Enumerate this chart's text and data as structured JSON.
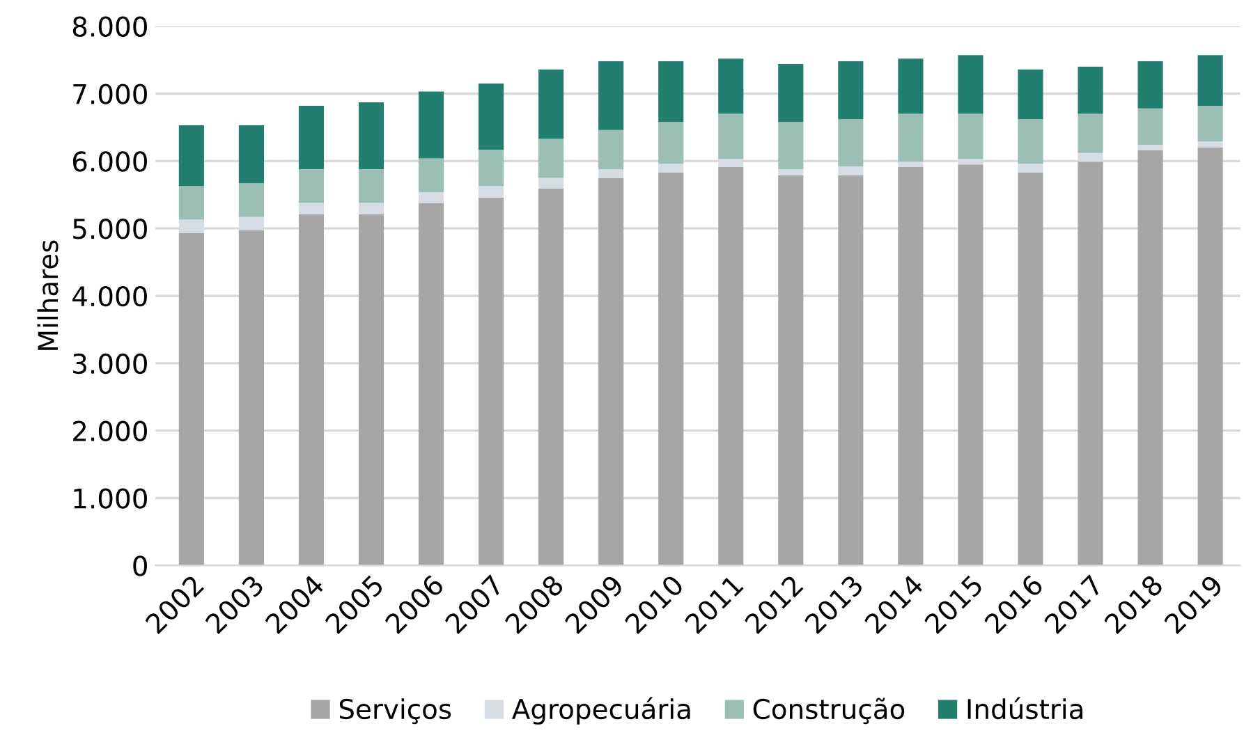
{
  "chart_data": {
    "type": "bar",
    "stacked": true,
    "ylabel": "Milhares",
    "categories": [
      "2002",
      "2003",
      "2004",
      "2005",
      "2006",
      "2007",
      "2008",
      "2009",
      "2010",
      "2011",
      "2012",
      "2013",
      "2014",
      "2015",
      "2016",
      "2017",
      "2018",
      "2019"
    ],
    "series": [
      {
        "name": "Serviços",
        "color": "#a6a6a6",
        "values": [
          4930,
          4970,
          5210,
          5210,
          5380,
          5460,
          5590,
          5750,
          5830,
          5910,
          5790,
          5790,
          5910,
          5950,
          5830,
          5990,
          6160,
          6200
        ]
      },
      {
        "name": "Agropecuária",
        "color": "#d6dce4",
        "values": [
          200,
          200,
          170,
          170,
          160,
          170,
          160,
          130,
          130,
          120,
          90,
          130,
          80,
          80,
          130,
          130,
          80,
          90
        ]
      },
      {
        "name": "Construção",
        "color": "#9bbfb4",
        "values": [
          500,
          500,
          500,
          500,
          500,
          540,
          580,
          580,
          620,
          670,
          700,
          700,
          710,
          670,
          660,
          580,
          540,
          530
        ]
      },
      {
        "name": "Indústria",
        "color": "#227e6e",
        "values": [
          900,
          860,
          940,
          990,
          990,
          980,
          1030,
          1020,
          900,
          820,
          860,
          860,
          820,
          870,
          740,
          700,
          700,
          750
        ]
      }
    ],
    "ylim": [
      0,
      8000
    ],
    "yticks": [
      {
        "value": 0,
        "label": "0"
      },
      {
        "value": 1000,
        "label": "1.000"
      },
      {
        "value": 2000,
        "label": "2.000"
      },
      {
        "value": 3000,
        "label": "3.000"
      },
      {
        "value": 4000,
        "label": "4.000"
      },
      {
        "value": 5000,
        "label": "5.000"
      },
      {
        "value": 6000,
        "label": "6.000"
      },
      {
        "value": 7000,
        "label": "7.000"
      },
      {
        "value": 8000,
        "label": "8.000"
      }
    ],
    "grid": "y",
    "legend": "bottom"
  }
}
